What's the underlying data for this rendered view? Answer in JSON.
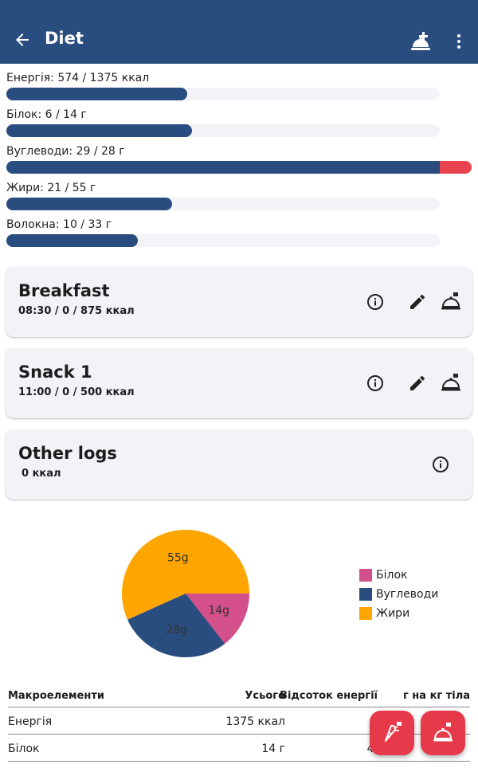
{
  "app_bar": {
    "title": "Diet",
    "icons": [
      "back-arrow-icon",
      "add-meal-icon",
      "more-vert-icon"
    ]
  },
  "nutrients": [
    {
      "label": "Енергія: 574 / 1375 ккал",
      "current": 574,
      "target": 1375
    },
    {
      "label": "Білок: 6 / 14 г",
      "current": 6,
      "target": 14
    },
    {
      "label": "Вуглеводи: 29 / 28 г",
      "current": 29,
      "target": 28
    },
    {
      "label": "Жири: 21 / 55 г",
      "current": 21,
      "target": 55
    },
    {
      "label": "Волокна: 10 / 33 г",
      "current": 10,
      "target": 33
    }
  ],
  "meals": [
    {
      "name": "Breakfast",
      "subtitle": "08:30 /  0 / 875 ккал",
      "actions": [
        "info-icon",
        "edit-icon",
        "add-food-icon"
      ]
    },
    {
      "name": "Snack 1",
      "subtitle": "11:00 /  0 / 500 ккал",
      "actions": [
        "info-icon",
        "edit-icon",
        "add-food-icon"
      ]
    },
    {
      "name": "Other logs",
      "subtitle": "0 ккал",
      "actions": [
        "info-icon"
      ]
    }
  ],
  "chart_data": {
    "type": "pie",
    "series": [
      {
        "name": "Білок",
        "value": 14,
        "label": "14g",
        "color": "#d4508a"
      },
      {
        "name": "Вуглеводи",
        "value": 28,
        "label": "28g",
        "color": "#2a4d7f"
      },
      {
        "name": "Жири",
        "value": 55,
        "label": "55g",
        "color": "#ffa500"
      }
    ],
    "legend_position": "right"
  },
  "table": {
    "headers": [
      "Макроелементи",
      "Усього",
      "Відсоток енергії",
      "г на кг тіла"
    ],
    "rows": [
      [
        "Енергія",
        "1375 ккал",
        "",
        ""
      ],
      [
        "Білок",
        "14 г",
        "4.",
        ""
      ]
    ]
  },
  "fabs": [
    "add-ingredient-icon",
    "add-meal-icon"
  ],
  "colors": {
    "primary": "#2a4d7f",
    "accent": "#e6394a",
    "over": "#e8424e",
    "card_bg": "#f2f2f7"
  }
}
